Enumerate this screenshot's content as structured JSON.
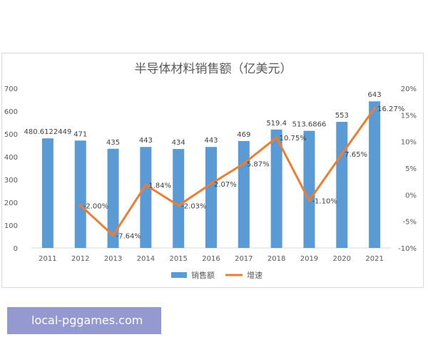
{
  "chart_data": {
    "type": "bar",
    "title": "半导体材料销售额（亿美元）",
    "categories": [
      "2011",
      "2012",
      "2013",
      "2014",
      "2015",
      "2016",
      "2017",
      "2018",
      "2019",
      "2020",
      "2021"
    ],
    "series": [
      {
        "name": "销售额",
        "type": "bar",
        "axis": "left",
        "color": "#5b9bd5",
        "values": [
          480.6122449,
          471,
          435,
          443,
          434,
          443,
          469,
          519.4,
          513.6866,
          553,
          643
        ],
        "labels": [
          "480.6122449",
          "471",
          "435",
          "443",
          "434",
          "443",
          "469",
          "519.4",
          "513.6866",
          "553",
          "643"
        ]
      },
      {
        "name": "增速",
        "type": "line",
        "axis": "right",
        "color": "#ed7d31",
        "values": [
          null,
          -2.0,
          -7.64,
          1.84,
          -2.03,
          2.07,
          5.87,
          10.75,
          -1.1,
          7.65,
          16.27
        ],
        "labels": [
          null,
          "-2.00%",
          "-7.64%",
          "1.84%",
          "-2.03%",
          "2.07%",
          "5.87%",
          "10.75%",
          "-1.10%",
          "7.65%",
          "16.27%"
        ]
      }
    ],
    "y_left": {
      "range": [
        0,
        700
      ],
      "ticks": [
        "0",
        "100",
        "200",
        "300",
        "400",
        "500",
        "600",
        "700"
      ]
    },
    "y_right": {
      "range": [
        -10,
        20
      ],
      "ticks": [
        "-10%",
        "-5%",
        "0%",
        "5%",
        "10%",
        "15%",
        "20%"
      ]
    },
    "grid": false,
    "legend_position": "bottom"
  },
  "watermark": {
    "text": "local-pggames.com",
    "color": "#7a82c4"
  }
}
